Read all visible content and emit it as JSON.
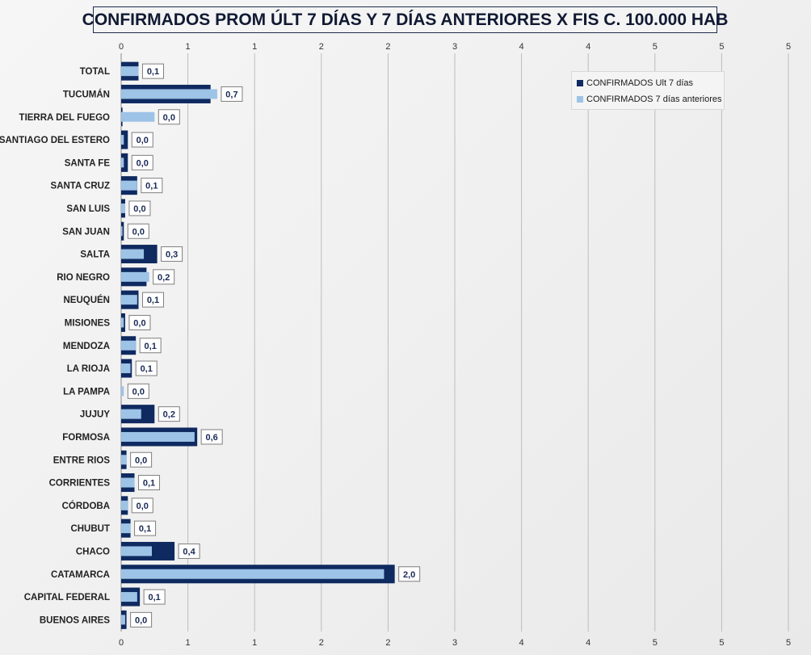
{
  "chart_data": {
    "type": "bar",
    "orientation": "horizontal",
    "title": "CONFIRMADOS PROM ÚLT 7 DÍAS Y 7 DÍAS ANTERIORES X FIS C. 100.000 HAB",
    "categories": [
      "TOTAL",
      "TUCUMÁN",
      "TIERRA  DEL FUEGO",
      "SANTIAGO  DEL ESTERO",
      "SANTA  FE",
      "SANTA  CRUZ",
      "SAN LUIS",
      "SAN JUAN",
      "SALTA",
      "RIO  NEGRO",
      "NEUQUÉN",
      "MISIONES",
      "MENDOZA",
      "LA RIOJA",
      "LA PAMPA",
      "JUJUY",
      "FORMOSA",
      "ENTRE  RIOS",
      "CORRIENTES",
      "CÓRDOBA",
      "CHUBUT",
      "CHACO",
      "CATAMARCA",
      "CAPITAL FEDERAL",
      "BUENOS  AIRES"
    ],
    "series": [
      {
        "name": "CONFIRMADOS Ult 7 días",
        "color": "#0f2a60",
        "values": [
          0.13,
          0.67,
          0.01,
          0.05,
          0.05,
          0.12,
          0.03,
          0.02,
          0.27,
          0.19,
          0.13,
          0.03,
          0.11,
          0.08,
          0.0,
          0.25,
          0.57,
          0.04,
          0.1,
          0.05,
          0.07,
          0.4,
          2.05,
          0.14,
          0.04
        ]
      },
      {
        "name": "CONFIRMADOS 7 días anteriores",
        "color": "#9dc3e6",
        "values": [
          0.13,
          0.72,
          0.25,
          0.02,
          0.02,
          0.12,
          0.03,
          0.01,
          0.17,
          0.21,
          0.12,
          0.02,
          0.11,
          0.07,
          0.02,
          0.15,
          0.55,
          0.04,
          0.1,
          0.05,
          0.07,
          0.23,
          1.97,
          0.12,
          0.03
        ]
      }
    ],
    "data_labels": [
      "0,1",
      "0,7",
      "0,0",
      "0,0",
      "0,0",
      "0,1",
      "0,0",
      "0,0",
      "0,3",
      "0,2",
      "0,1",
      "0,0",
      "0,1",
      "0,1",
      "0,0",
      "0,2",
      "0,6",
      "0,0",
      "0,1",
      "0,0",
      "0,1",
      "0,4",
      "2,0",
      "0,1",
      "0,0"
    ],
    "xlim": [
      0,
      5
    ],
    "x_tick_labels": [
      "0",
      "1",
      "1",
      "2",
      "2",
      "3",
      "4",
      "4",
      "5",
      "5",
      "5"
    ],
    "grid": true,
    "legend_position": "top-right"
  }
}
